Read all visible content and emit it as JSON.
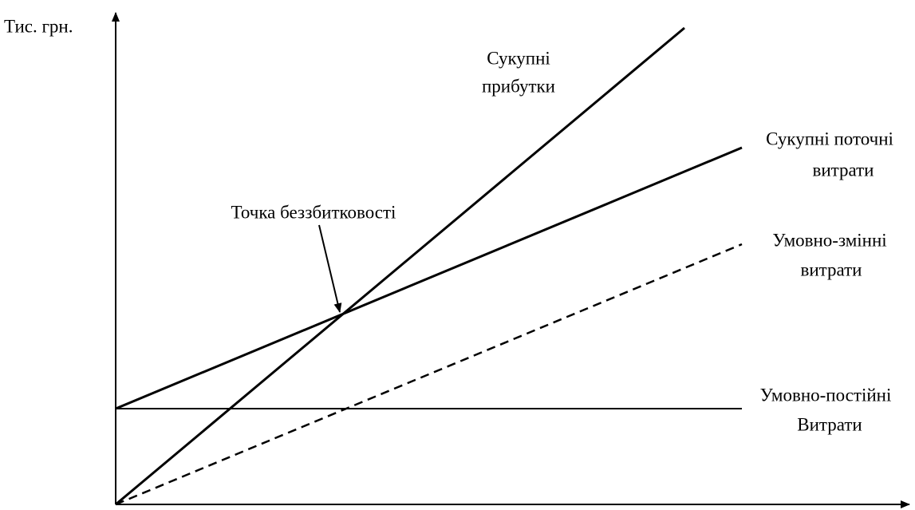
{
  "y_axis_label": "Тис. грн.",
  "labels": {
    "revenue": [
      "Сукупні",
      "прибутки"
    ],
    "total_costs": [
      "Сукупні поточні",
      "витрати"
    ],
    "break_even": [
      "Точка беззбитковості"
    ],
    "variable_costs": [
      "Умовно-змінні",
      "витрати"
    ],
    "fixed_costs": [
      "Умовно-постійні",
      "Витрати"
    ]
  }
}
